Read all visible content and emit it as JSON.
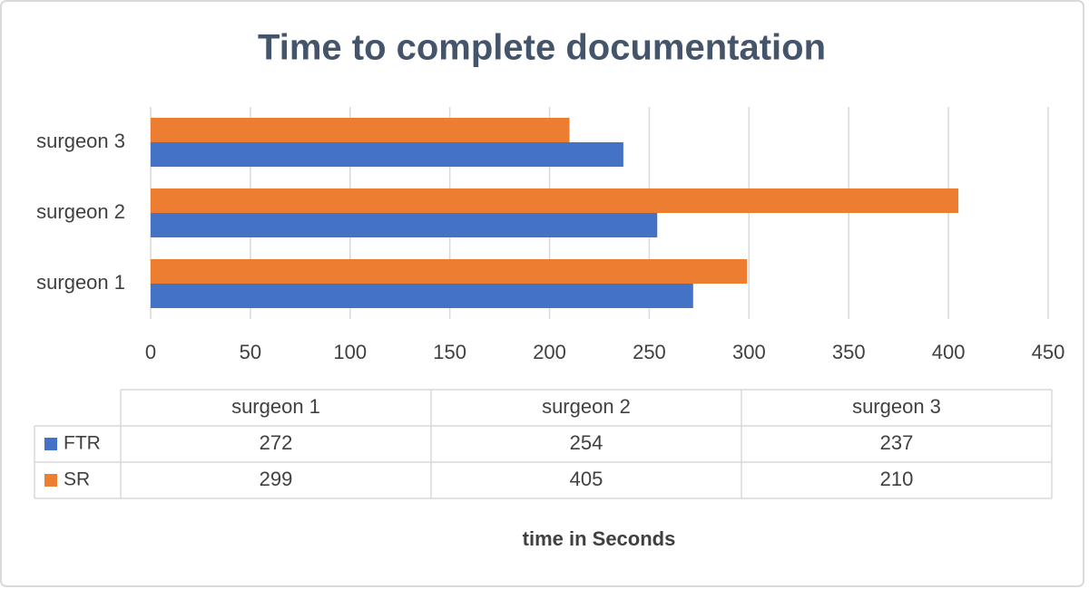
{
  "chart_data": {
    "type": "bar",
    "orientation": "horizontal",
    "title": "Time to complete documentation",
    "categories": [
      "surgeon 1",
      "surgeon 2",
      "surgeon 3"
    ],
    "series": [
      {
        "name": "FTR",
        "color": "#4472c4",
        "values": [
          272,
          254,
          237
        ]
      },
      {
        "name": "SR",
        "color": "#ed7d31",
        "values": [
          299,
          405,
          210
        ]
      }
    ],
    "xlim": [
      0,
      450
    ],
    "xticks": [
      0,
      50,
      100,
      150,
      200,
      250,
      300,
      350,
      400,
      450
    ],
    "xlabel": "time in Seconds",
    "grid": true,
    "data_table": true
  }
}
